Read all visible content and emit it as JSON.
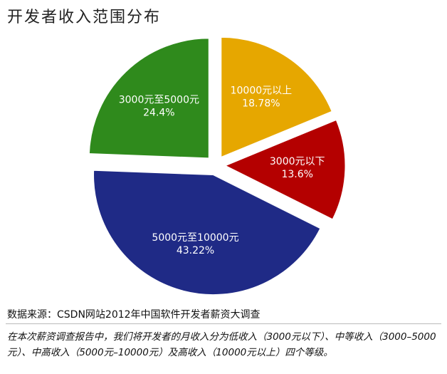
{
  "chart_data": {
    "type": "pie",
    "title": "开发者收入范围分布",
    "categories": [
      "10000元以上",
      "3000元以下",
      "5000元至10000元",
      "3000元至5000元"
    ],
    "values": [
      18.78,
      13.6,
      43.22,
      24.4
    ],
    "value_labels": [
      "18.78%",
      "13.6%",
      "43.22%",
      "24.4%"
    ],
    "colors": [
      "#e6a700",
      "#b40000",
      "#1f2a86",
      "#2f8a1c"
    ]
  },
  "source": "数据来源：CSDN网站2012年中国软件开发者薪资大调查",
  "caption": "在本次薪资调查报告中，我们将开发者的月收入分为低收入（3000元以下）、中等收入（3000–5000元）、中高收入（5000元–10000元）及高收入（10000元以上）四个等级。"
}
